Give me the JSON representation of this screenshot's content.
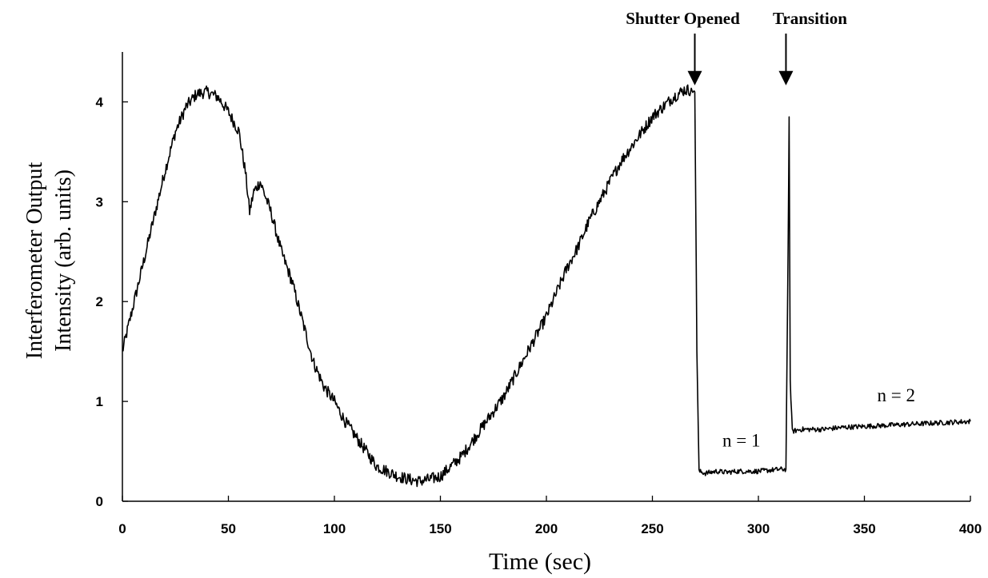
{
  "chart_data": {
    "type": "line",
    "title": "",
    "xlabel": "Time (sec)",
    "ylabel_line1": "Interferometer Output",
    "ylabel_line2": "Intensity (arb. units)",
    "xlim": [
      0,
      400
    ],
    "ylim": [
      0,
      4.5
    ],
    "xticks": [
      0,
      50,
      100,
      150,
      200,
      250,
      300,
      350,
      400
    ],
    "yticks": [
      0,
      1,
      2,
      3,
      4
    ],
    "grid": false,
    "legend": "none",
    "line_color": "#000000",
    "series": [
      {
        "x": [
          0,
          5,
          10,
          15,
          20,
          25,
          30,
          35,
          40,
          45,
          50,
          55,
          58,
          60,
          62,
          65,
          70,
          75,
          80,
          85,
          90,
          95,
          100,
          105,
          110,
          115,
          120,
          125,
          130,
          135,
          140,
          145,
          150,
          155,
          160,
          165,
          170,
          175,
          180,
          185,
          190,
          195,
          200,
          205,
          210,
          215,
          220,
          225,
          230,
          235,
          240,
          245,
          250,
          255,
          260,
          265,
          268,
          270,
          271,
          272,
          275,
          280,
          285,
          290,
          295,
          300,
          305,
          310,
          313,
          314,
          314.5,
          315,
          316,
          320,
          330,
          340,
          350,
          360,
          370,
          380,
          390,
          400
        ],
        "y": [
          1.5,
          1.95,
          2.4,
          2.85,
          3.3,
          3.7,
          3.95,
          4.08,
          4.1,
          4.05,
          3.9,
          3.7,
          3.3,
          2.9,
          3.1,
          3.2,
          2.9,
          2.5,
          2.2,
          1.8,
          1.4,
          1.15,
          1.0,
          0.8,
          0.65,
          0.5,
          0.35,
          0.3,
          0.25,
          0.22,
          0.2,
          0.22,
          0.25,
          0.35,
          0.45,
          0.6,
          0.75,
          0.9,
          1.05,
          1.25,
          1.45,
          1.65,
          1.85,
          2.1,
          2.35,
          2.55,
          2.8,
          3.0,
          3.2,
          3.4,
          3.55,
          3.7,
          3.85,
          3.95,
          4.05,
          4.12,
          4.12,
          4.1,
          1.5,
          0.3,
          0.28,
          0.3,
          0.29,
          0.3,
          0.3,
          0.3,
          0.31,
          0.32,
          0.32,
          2.5,
          3.85,
          1.2,
          0.7,
          0.72,
          0.72,
          0.74,
          0.75,
          0.76,
          0.77,
          0.78,
          0.79,
          0.8
        ]
      }
    ],
    "annotations": [
      {
        "text": "Shutter Opened",
        "x": 270,
        "arrow_tip_y": 4.15
      },
      {
        "text": "Transition",
        "x": 313,
        "arrow_tip_y": 4.15
      },
      {
        "text": "n = 1",
        "x": 292,
        "y": 0.55
      },
      {
        "text": "n = 2",
        "x": 365,
        "y": 1.0
      }
    ]
  }
}
